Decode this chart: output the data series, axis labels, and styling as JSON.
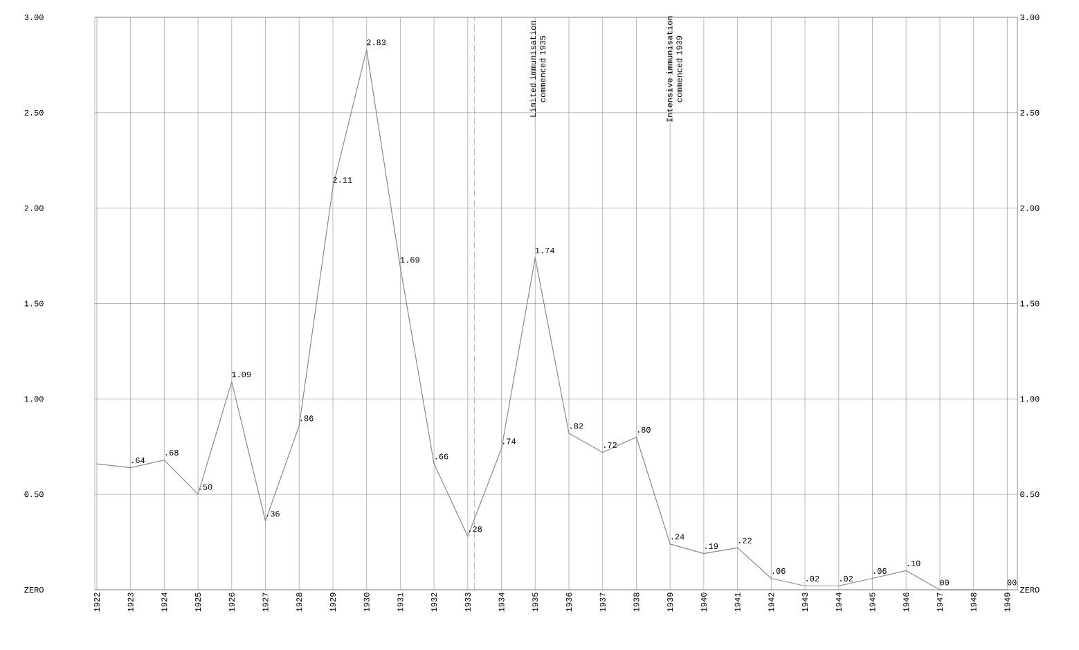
{
  "chart_data": {
    "type": "line",
    "x": [
      1922,
      1923,
      1924,
      1925,
      1926,
      1927,
      1928,
      1929,
      1930,
      1931,
      1932,
      1933,
      1934,
      1935,
      1936,
      1937,
      1938,
      1939,
      1940,
      1941,
      1942,
      1943,
      1944,
      1945,
      1946,
      1947,
      1948,
      1949
    ],
    "values": [
      0.66,
      0.64,
      0.68,
      0.5,
      1.09,
      0.36,
      0.86,
      2.11,
      2.83,
      1.69,
      0.66,
      0.28,
      0.74,
      1.74,
      0.82,
      0.72,
      0.8,
      0.24,
      0.19,
      0.22,
      0.06,
      0.02,
      0.02,
      0.06,
      0.1,
      0,
      0,
      0
    ],
    "value_labels": [
      null,
      ".64",
      ".68",
      ".50",
      "1.09",
      ".36",
      ".86",
      "2.11",
      "2.83",
      "1.69",
      ".66",
      ".28",
      ".74",
      "1.74",
      ".82",
      ".72",
      ".80",
      ".24",
      ".19",
      ".22",
      ".06",
      ".02",
      ".02",
      ".06",
      ".10",
      "00",
      null,
      "00"
    ],
    "color": "#8a8a8a",
    "xlim": [
      1921.94,
      1949.3
    ],
    "xticks": [
      1922,
      1923,
      1924,
      1925,
      1926,
      1927,
      1928,
      1929,
      1930,
      1931,
      1932,
      1933,
      1934,
      1935,
      1936,
      1937,
      1938,
      1939,
      1940,
      1941,
      1942,
      1943,
      1944,
      1945,
      1946,
      1947,
      1948,
      1949
    ],
    "ylim": [
      0,
      3
    ],
    "yticks": [
      {
        "value": 0,
        "label": "ZERO"
      },
      {
        "value": 0.5,
        "label": "0.50"
      },
      {
        "value": 1,
        "label": "1.00"
      },
      {
        "value": 1.5,
        "label": "1.50"
      },
      {
        "value": 2,
        "label": "2.00"
      },
      {
        "value": 2.5,
        "label": "2.50"
      },
      {
        "value": 3,
        "label": "3.00"
      }
    ],
    "y2lim": [
      0,
      3
    ],
    "y2ticks": [
      {
        "value": 0,
        "label": "ZERO"
      },
      {
        "value": 0.5,
        "label": "0.50"
      },
      {
        "value": 1,
        "label": "1.00"
      },
      {
        "value": 1.5,
        "label": "1.50"
      },
      {
        "value": 2,
        "label": "2.00"
      },
      {
        "value": 2.5,
        "label": "2.50"
      },
      {
        "value": 3,
        "label": "3.00"
      }
    ],
    "grid": true,
    "ref_lines": [
      {
        "axis": "x",
        "value": 1933.2,
        "line_style": "dashed"
      }
    ],
    "annotations": [
      "Limited immunisation commenced 1935",
      "Intensive immunisation commenced 1939"
    ]
  }
}
